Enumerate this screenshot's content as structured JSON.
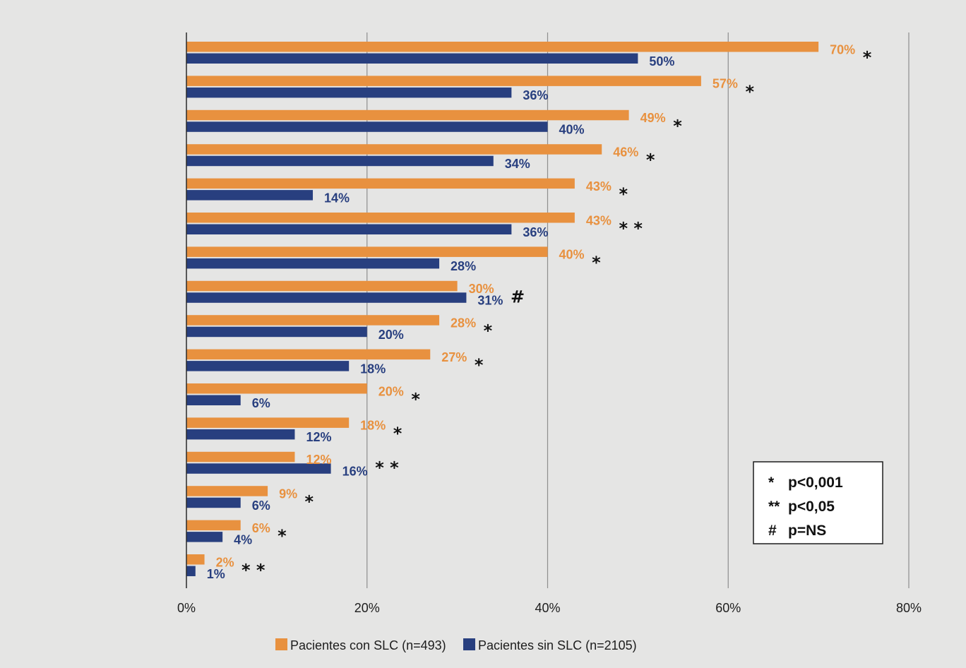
{
  "chart_data": {
    "type": "bar",
    "orientation": "horizontal",
    "title": "",
    "xlabel": "",
    "ylabel": "",
    "xlim": [
      0,
      80
    ],
    "x_ticks": [
      0,
      20,
      40,
      60,
      80
    ],
    "x_tick_labels": [
      "0%",
      "20%",
      "40%",
      "60%",
      "80%"
    ],
    "grid": "vertical",
    "legend_position": "bottom",
    "series": [
      {
        "name": "Pacientes con SLC (n=493)",
        "color": "#e8913f",
        "values": [
          70,
          57,
          49,
          46,
          43,
          43,
          40,
          30,
          28,
          27,
          20,
          18,
          12,
          9,
          6,
          2
        ],
        "labels": [
          "70%",
          "57%",
          "49%",
          "46%",
          "43%",
          "43%",
          "40%",
          "30%",
          "28%",
          "27%",
          "20%",
          "18%",
          "12%",
          "9%",
          "6%",
          "2%"
        ]
      },
      {
        "name": "Pacientes sin SLC (n=2105)",
        "color": "#283f7f",
        "values": [
          50,
          36,
          40,
          34,
          14,
          36,
          28,
          31,
          20,
          18,
          6,
          12,
          16,
          6,
          4,
          1
        ],
        "labels": [
          "50%",
          "36%",
          "40%",
          "34%",
          "14%",
          "36%",
          "28%",
          "31%",
          "20%",
          "18%",
          "6%",
          "12%",
          "16%",
          "6%",
          "4%",
          "1%"
        ]
      }
    ],
    "significance": [
      "*",
      "*",
      "*",
      "*",
      "*",
      "* *",
      "*",
      "#",
      "*",
      "*",
      "*",
      "*",
      "* *",
      "*",
      "*",
      "* *"
    ],
    "significance_legend": [
      {
        "symbol": "*",
        "text": "p<0,001"
      },
      {
        "symbol": "**",
        "text": "p<0,05"
      },
      {
        "symbol": "#",
        "text": "p=NS"
      }
    ]
  }
}
